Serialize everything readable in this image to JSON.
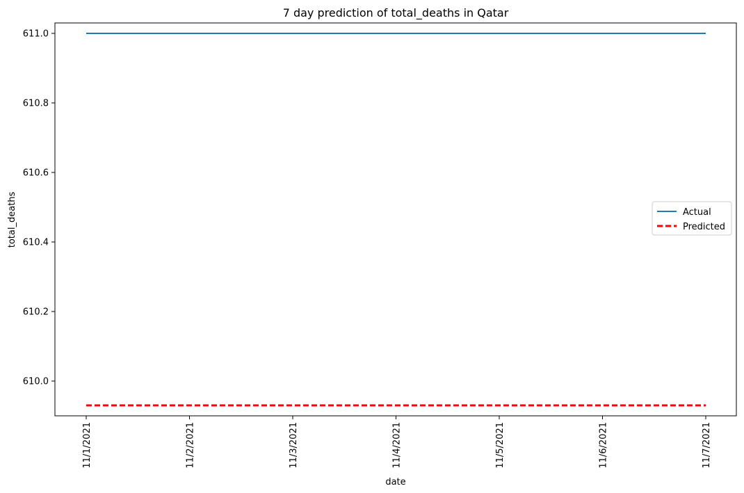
{
  "chart_data": {
    "type": "line",
    "title": "7 day prediction of total_deaths in Qatar",
    "xlabel": "date",
    "ylabel": "total_deaths",
    "x": [
      "11/1/2021",
      "11/2/2021",
      "11/3/2021",
      "11/4/2021",
      "11/5/2021",
      "11/6/2021",
      "11/7/2021"
    ],
    "ylim": [
      609.9,
      611.03
    ],
    "yticks": [
      610.0,
      610.2,
      610.4,
      610.6,
      610.8,
      611.0
    ],
    "ytick_labels": [
      "610.0",
      "610.2",
      "610.4",
      "610.6",
      "610.8",
      "611.0"
    ],
    "series": [
      {
        "name": "Actual",
        "values": [
          611,
          611,
          611,
          611,
          611,
          611,
          611
        ],
        "color": "#1f77b4",
        "style": "solid"
      },
      {
        "name": "Predicted",
        "values": [
          609.93,
          609.93,
          609.93,
          609.93,
          609.93,
          609.93,
          609.93
        ],
        "color": "#ff0000",
        "style": "dashed"
      }
    ],
    "legend_position": "center-right",
    "grid": false
  }
}
